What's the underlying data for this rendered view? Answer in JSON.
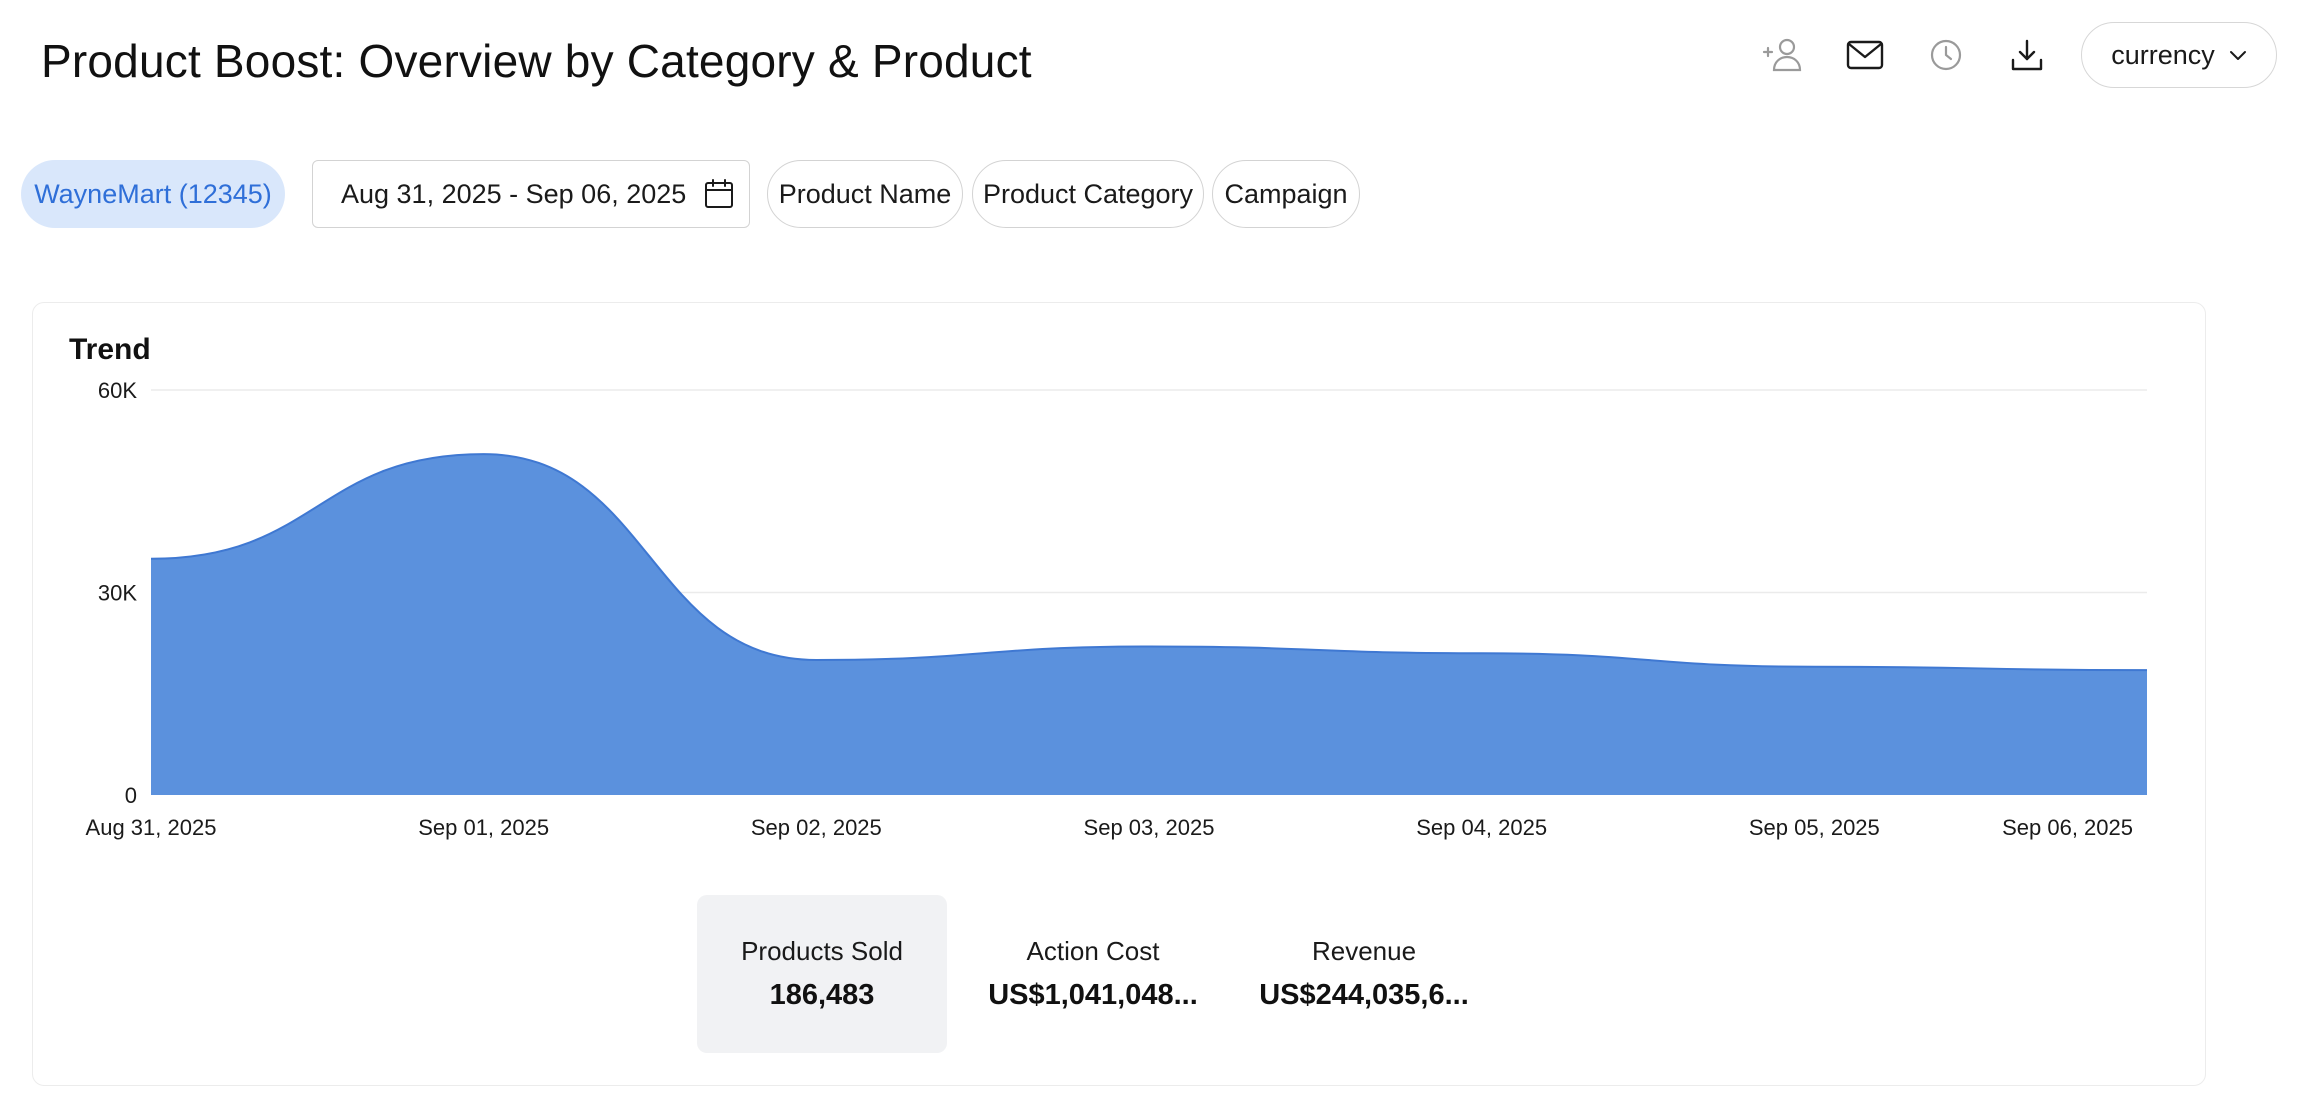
{
  "header": {
    "title": "Product Boost: Overview by Category & Product",
    "icons": [
      "add-user-icon",
      "mail-icon",
      "clock-icon",
      "download-icon"
    ],
    "currency_label": "currency"
  },
  "filters": {
    "account": "WayneMart (12345)",
    "date_range": "Aug 31, 2025 - Sep 06, 2025",
    "chips": [
      "Product Name",
      "Product Category",
      "Campaign"
    ]
  },
  "colors": {
    "accent": "#2f6fd8",
    "area_fill": "#5b91dd",
    "area_stroke": "#3f78d2",
    "chip_active_bg": "#d9e7fb"
  },
  "trend": {
    "title": "Trend",
    "metrics": [
      {
        "label": "Products Sold",
        "value": "186,483",
        "active": true
      },
      {
        "label": "Action Cost",
        "value": "US$1,041,048...",
        "active": false
      },
      {
        "label": "Revenue",
        "value": "US$244,035,6...",
        "active": false
      }
    ]
  },
  "chart_data": {
    "type": "area",
    "title": "Trend",
    "x": [
      "Aug 31, 2025",
      "Sep 01, 2025",
      "Sep 02, 2025",
      "Sep 03, 2025",
      "Sep 04, 2025",
      "Sep 05, 2025",
      "Sep 06, 2025"
    ],
    "series": [
      {
        "name": "",
        "values": [
          35000,
          50500,
          20000,
          22000,
          21000,
          19000,
          18500
        ]
      }
    ],
    "yticks": [
      "0",
      "30K",
      "60K"
    ],
    "ylim": [
      0,
      60000
    ],
    "grid": true,
    "legend": "none"
  }
}
